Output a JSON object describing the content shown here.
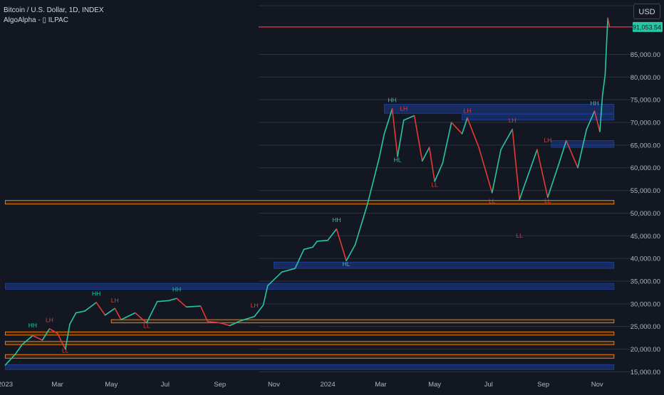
{
  "header": {
    "symbol_title": "Bitcoin / U.S. Dollar, 1D, INDEX",
    "indicator_label": "AlgoAlpha - ▯ ILPAC",
    "currency": "USD"
  },
  "colors": {
    "background": "#131722",
    "up": "#26c6a6",
    "down": "#e53935",
    "price_line": "#f23645",
    "blue_zone": "#2962ff",
    "orange_zone": "#f57c00",
    "hh_label": "#26c6a6",
    "lh_label": "#e53935"
  },
  "price_badge": "91,053.54",
  "chart_data": {
    "type": "line",
    "title": "Bitcoin / U.S. Dollar, 1D, INDEX",
    "x_ticks": [
      "2023",
      "Mar",
      "May",
      "Jul",
      "Sep",
      "Nov",
      "2024",
      "Mar",
      "May",
      "Jul",
      "Sep",
      "Nov"
    ],
    "y_ticks": [
      "15,000.00",
      "20,000.00",
      "25,000.00",
      "30,000.00",
      "35,000.00",
      "40,000.00",
      "45,000.00",
      "50,000.00",
      "55,000.00",
      "60,000.00",
      "65,000.00",
      "70,000.00",
      "75,000.00",
      "80,000.00",
      "85,000.00"
    ],
    "ylim": [
      13500,
      97000
    ],
    "last_price": 91053.54,
    "series": [
      {
        "values": [
          [
            "2023-01-01",
            16500
          ],
          [
            "2023-01-12",
            18800
          ],
          [
            "2023-01-20",
            21000
          ],
          [
            "2023-02-01",
            23000
          ],
          [
            "2023-02-12",
            22000
          ],
          [
            "2023-02-20",
            24500
          ],
          [
            "2023-03-01",
            23500
          ],
          [
            "2023-03-10",
            20000
          ],
          [
            "2023-03-15",
            25500
          ],
          [
            "2023-03-22",
            28000
          ],
          [
            "2023-04-01",
            28400
          ],
          [
            "2023-04-14",
            30300
          ],
          [
            "2023-04-24",
            27500
          ],
          [
            "2023-05-05",
            29000
          ],
          [
            "2023-05-12",
            26500
          ],
          [
            "2023-05-28",
            28000
          ],
          [
            "2023-06-10",
            25800
          ],
          [
            "2023-06-22",
            30500
          ],
          [
            "2023-07-05",
            30700
          ],
          [
            "2023-07-14",
            31200
          ],
          [
            "2023-07-25",
            29300
          ],
          [
            "2023-08-10",
            29500
          ],
          [
            "2023-08-18",
            26100
          ],
          [
            "2023-09-01",
            25800
          ],
          [
            "2023-09-12",
            25200
          ],
          [
            "2023-09-25",
            26300
          ],
          [
            "2023-10-10",
            27200
          ],
          [
            "2023-10-20",
            29700
          ],
          [
            "2023-10-25",
            34000
          ],
          [
            "2023-11-10",
            37000
          ],
          [
            "2023-11-25",
            37800
          ],
          [
            "2023-12-05",
            42000
          ],
          [
            "2023-12-15",
            42500
          ],
          [
            "2023-12-20",
            43800
          ],
          [
            "2024-01-01",
            44000
          ],
          [
            "2024-01-11",
            46500
          ],
          [
            "2024-01-22",
            39500
          ],
          [
            "2024-02-01",
            43000
          ],
          [
            "2024-02-15",
            52000
          ],
          [
            "2024-02-28",
            62000
          ],
          [
            "2024-03-05",
            67500
          ],
          [
            "2024-03-14",
            73000
          ],
          [
            "2024-03-20",
            62500
          ],
          [
            "2024-03-27",
            70500
          ],
          [
            "2024-04-08",
            71500
          ],
          [
            "2024-04-17",
            61500
          ],
          [
            "2024-04-25",
            64500
          ],
          [
            "2024-05-01",
            57000
          ],
          [
            "2024-05-10",
            61000
          ],
          [
            "2024-05-20",
            70000
          ],
          [
            "2024-06-01",
            67500
          ],
          [
            "2024-06-07",
            71000
          ],
          [
            "2024-06-20",
            64500
          ],
          [
            "2024-07-05",
            54500
          ],
          [
            "2024-07-15",
            64000
          ],
          [
            "2024-07-28",
            68500
          ],
          [
            "2024-08-05",
            53000
          ],
          [
            "2024-08-15",
            58500
          ],
          [
            "2024-08-25",
            64000
          ],
          [
            "2024-09-06",
            53500
          ],
          [
            "2024-09-18",
            60500
          ],
          [
            "2024-09-27",
            66000
          ],
          [
            "2024-10-10",
            60000
          ],
          [
            "2024-10-20",
            68500
          ],
          [
            "2024-10-29",
            72500
          ],
          [
            "2024-11-04",
            68000
          ],
          [
            "2024-11-07",
            76000
          ],
          [
            "2024-11-10",
            80500
          ],
          [
            "2024-11-12",
            89000
          ],
          [
            "2024-11-13",
            93000
          ],
          [
            "2024-11-15",
            91053.54
          ]
        ]
      }
    ],
    "blue_zones": [
      {
        "from": "2024-03-05",
        "to": "2024-11-20",
        "low": 72000,
        "high": 74000
      },
      {
        "from": "2024-06-01",
        "to": "2024-11-20",
        "low": 70500,
        "high": 71800
      },
      {
        "from": "2024-09-10",
        "to": "2024-11-20",
        "low": 64500,
        "high": 66000
      },
      {
        "from": "2023-11-01",
        "to": "2024-11-20",
        "low": 37800,
        "high": 39200
      },
      {
        "from": "2023-01-01",
        "to": "2024-11-20",
        "low": 33200,
        "high": 34500
      },
      {
        "from": "2023-01-01",
        "to": "2024-11-20",
        "low": 15500,
        "high": 16600
      }
    ],
    "orange_zones": [
      {
        "from": "2023-01-01",
        "to": "2024-11-20",
        "low": 52000,
        "high": 52800
      },
      {
        "from": "2023-05-01",
        "to": "2024-11-20",
        "low": 25800,
        "high": 26500
      },
      {
        "from": "2023-01-01",
        "to": "2024-11-20",
        "low": 23100,
        "high": 23800
      },
      {
        "from": "2023-01-01",
        "to": "2024-11-20",
        "low": 21000,
        "high": 21700
      },
      {
        "from": "2023-01-01",
        "to": "2024-11-20",
        "low": 18000,
        "high": 18800
      }
    ],
    "structure_labels": [
      {
        "text": "HH",
        "date": "2023-02-01",
        "price": 24800,
        "kind": "up"
      },
      {
        "text": "LH",
        "date": "2023-02-20",
        "price": 26000,
        "kind": "down"
      },
      {
        "text": "LL",
        "date": "2023-03-10",
        "price": 19200,
        "kind": "down"
      },
      {
        "text": "HH",
        "date": "2023-04-14",
        "price": 31800,
        "kind": "up"
      },
      {
        "text": "LH",
        "date": "2023-05-05",
        "price": 30300,
        "kind": "down"
      },
      {
        "text": "LL",
        "date": "2023-06-10",
        "price": 24700,
        "kind": "down"
      },
      {
        "text": "HH",
        "date": "2023-07-14",
        "price": 32700,
        "kind": "up"
      },
      {
        "text": "LH",
        "date": "2023-10-10",
        "price": 29200,
        "kind": "down"
      },
      {
        "text": "HH",
        "date": "2024-01-11",
        "price": 48000,
        "kind": "up"
      },
      {
        "text": "HL",
        "date": "2024-01-22",
        "price": 38300,
        "kind": "up"
      },
      {
        "text": "HH",
        "date": "2024-03-14",
        "price": 74500,
        "kind": "up"
      },
      {
        "text": "HL",
        "date": "2024-03-20",
        "price": 61300,
        "kind": "up"
      },
      {
        "text": "LH",
        "date": "2024-03-27",
        "price": 72600,
        "kind": "down"
      },
      {
        "text": "LH",
        "date": "2024-06-07",
        "price": 72100,
        "kind": "down"
      },
      {
        "text": "LL",
        "date": "2024-05-01",
        "price": 55800,
        "kind": "down"
      },
      {
        "text": "LH",
        "date": "2024-07-28",
        "price": 70000,
        "kind": "down"
      },
      {
        "text": "LL",
        "date": "2024-07-05",
        "price": 52200,
        "kind": "down"
      },
      {
        "text": "LL",
        "date": "2024-08-05",
        "price": 44600,
        "kind": "down"
      },
      {
        "text": "LH",
        "date": "2024-09-06",
        "price": 65600,
        "kind": "down"
      },
      {
        "text": "LL",
        "date": "2024-09-06",
        "price": 52300,
        "kind": "down"
      },
      {
        "text": "HH",
        "date": "2024-10-29",
        "price": 73800,
        "kind": "up"
      }
    ],
    "grid": true
  }
}
